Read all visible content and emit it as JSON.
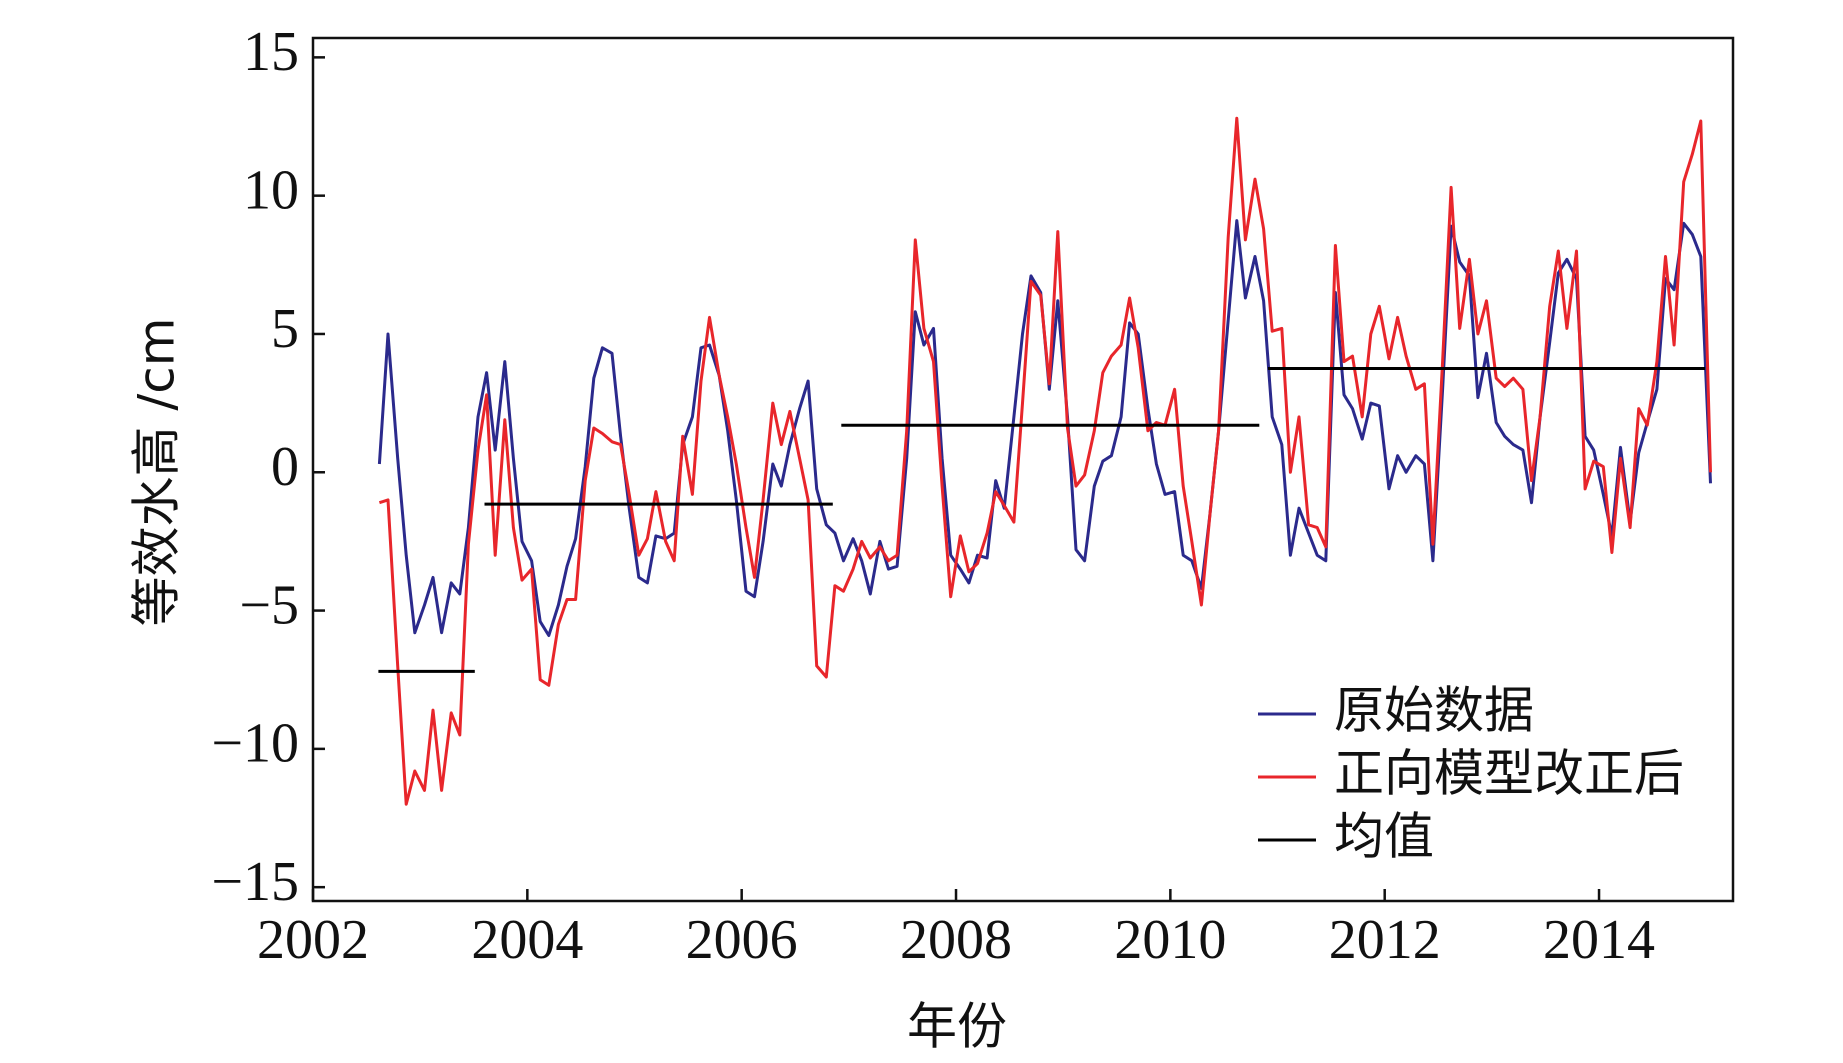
{
  "chart_data": {
    "type": "line",
    "x_label": "年份",
    "y_label": "等效水高 /cm",
    "x": [
      2002.62,
      2002.7,
      2002.79,
      2002.87,
      2002.95,
      2003.04,
      2003.12,
      2003.2,
      2003.29,
      2003.37,
      2003.45,
      2003.54,
      2003.62,
      2003.7,
      2003.79,
      2003.87,
      2003.95,
      2004.04,
      2004.12,
      2004.2,
      2004.29,
      2004.37,
      2004.45,
      2004.54,
      2004.62,
      2004.7,
      2004.79,
      2004.87,
      2004.95,
      2005.04,
      2005.12,
      2005.2,
      2005.29,
      2005.37,
      2005.45,
      2005.54,
      2005.62,
      2005.7,
      2005.79,
      2005.87,
      2005.95,
      2006.04,
      2006.12,
      2006.2,
      2006.29,
      2006.37,
      2006.45,
      2006.54,
      2006.62,
      2006.7,
      2006.79,
      2006.87,
      2006.95,
      2007.04,
      2007.12,
      2007.2,
      2007.29,
      2007.37,
      2007.45,
      2007.54,
      2007.62,
      2007.7,
      2007.79,
      2007.87,
      2007.95,
      2008.04,
      2008.12,
      2008.2,
      2008.29,
      2008.37,
      2008.45,
      2008.54,
      2008.62,
      2008.7,
      2008.79,
      2008.87,
      2008.95,
      2009.04,
      2009.12,
      2009.2,
      2009.29,
      2009.37,
      2009.45,
      2009.54,
      2009.62,
      2009.7,
      2009.79,
      2009.87,
      2009.95,
      2010.04,
      2010.12,
      2010.2,
      2010.29,
      2010.37,
      2010.45,
      2010.54,
      2010.62,
      2010.7,
      2010.79,
      2010.87,
      2010.95,
      2011.04,
      2011.12,
      2011.2,
      2011.29,
      2011.37,
      2011.45,
      2011.54,
      2011.62,
      2011.7,
      2011.79,
      2011.87,
      2011.95,
      2012.04,
      2012.12,
      2012.2,
      2012.29,
      2012.37,
      2012.45,
      2012.54,
      2012.62,
      2012.7,
      2012.79,
      2012.87,
      2012.95,
      2013.04,
      2013.12,
      2013.2,
      2013.29,
      2013.37,
      2013.45,
      2013.54,
      2013.62,
      2013.7,
      2013.79,
      2013.87,
      2013.95,
      2014.04,
      2014.12,
      2014.2,
      2014.29,
      2014.37,
      2014.45,
      2014.54,
      2014.62,
      2014.7,
      2014.79,
      2014.87,
      2014.95,
      2015.04
    ],
    "series": [
      {
        "name": "原始数据",
        "color": "#2b2a8c",
        "values": [
          0.3,
          5,
          0.5,
          -3,
          -5.8,
          -4.8,
          -3.8,
          -5.8,
          -4,
          -4.4,
          -2,
          2,
          3.6,
          0.8,
          4,
          0.5,
          -2.5,
          -3.2,
          -5.4,
          -5.9,
          -4.8,
          -3.4,
          -2.4,
          0.2,
          3.4,
          4.5,
          4.3,
          1.3,
          -1.3,
          -3.8,
          -4,
          -2.3,
          -2.4,
          -2.2,
          1,
          2,
          4.5,
          4.6,
          3.5,
          1.5,
          -1,
          -4.3,
          -4.5,
          -2.5,
          0.3,
          -0.5,
          1,
          2.3,
          3.3,
          -0.6,
          -1.9,
          -2.2,
          -3.2,
          -2.4,
          -3.2,
          -4.4,
          -2.5,
          -3.5,
          -3.4,
          0.5,
          5.8,
          4.6,
          5.2,
          0.5,
          -3,
          -3.5,
          -4,
          -3,
          -3.1,
          -0.3,
          -1.3,
          2,
          5,
          7.1,
          6.5,
          3,
          6.2,
          2,
          -2.8,
          -3.2,
          -0.5,
          0.4,
          0.6,
          2,
          5.4,
          5,
          2.3,
          0.3,
          -0.8,
          -0.7,
          -3,
          -3.2,
          -4.2,
          -1.5,
          1.5,
          5.5,
          9.1,
          6.3,
          7.8,
          6.2,
          2,
          1,
          -3,
          -1.3,
          -2.2,
          -3,
          -3.2,
          6.5,
          2.8,
          2.3,
          1.2,
          2.5,
          2.4,
          -0.6,
          0.6,
          0,
          0.6,
          0.3,
          -3.2,
          3,
          8.9,
          7.6,
          7.1,
          2.7,
          4.3,
          1.8,
          1.3,
          1,
          0.8,
          -1.1,
          2,
          4.7,
          7.2,
          7.7,
          7,
          1.3,
          0.8,
          -0.8,
          -2.3,
          0.9,
          -1.8,
          0.7,
          1.8,
          3,
          7,
          6.6,
          9,
          8.6,
          7.8,
          -0.4
        ]
      },
      {
        "name": "正向模型改正后",
        "color": "#e8262b",
        "values": [
          -1.1,
          -1,
          -7,
          -12,
          -10.8,
          -11.5,
          -8.6,
          -11.5,
          -8.7,
          -9.5,
          -2.6,
          0.8,
          2.8,
          -3,
          1.9,
          -2,
          -3.9,
          -3.5,
          -7.5,
          -7.7,
          -5.5,
          -4.6,
          -4.6,
          -0.3,
          1.6,
          1.4,
          1.1,
          1,
          -0.8,
          -3,
          -2.4,
          -0.7,
          -2.5,
          -3.2,
          1.3,
          -0.8,
          3.3,
          5.6,
          3.5,
          2,
          0.3,
          -2,
          -3.8,
          -1,
          2.5,
          1,
          2.2,
          0.5,
          -1,
          -7,
          -7.4,
          -4.1,
          -4.3,
          -3.5,
          -2.5,
          -3.1,
          -2.7,
          -3.2,
          -3,
          1.5,
          8.4,
          5.2,
          4,
          -0.5,
          -4.5,
          -2.3,
          -3.6,
          -3.3,
          -2.2,
          -0.7,
          -1.2,
          -1.8,
          2.5,
          6.9,
          6.4,
          3.2,
          8.7,
          1.6,
          -0.5,
          -0.1,
          1.5,
          3.6,
          4.2,
          4.6,
          6.3,
          4.5,
          1.5,
          1.8,
          1.7,
          3,
          -0.5,
          -2.5,
          -4.8,
          -1.5,
          1.5,
          8.5,
          12.8,
          8.4,
          10.6,
          8.8,
          5.1,
          5.2,
          0,
          2,
          -1.9,
          -2,
          -2.7,
          8.2,
          4,
          4.2,
          2,
          5,
          6,
          4.1,
          5.6,
          4.2,
          3,
          3.2,
          -2.6,
          4,
          10.3,
          5.2,
          7.7,
          5,
          6.2,
          3.4,
          3.1,
          3.4,
          3,
          -0.3,
          2,
          6,
          8,
          5.2,
          8,
          -0.6,
          0.4,
          0.2,
          -2.9,
          0.5,
          -2,
          2.3,
          1.7,
          4,
          7.8,
          4.6,
          10.5,
          11.5,
          12.7,
          0
        ]
      },
      {
        "name": "均值",
        "color": "#000000",
        "x": [
          2002.61,
          2003.51,
          2003.55,
          2003.6,
          2006.85,
          2006.89,
          2006.93,
          2010.83,
          2010.87,
          2010.91,
          2014.99
        ],
        "values": [
          -7.2,
          -7.2,
          null,
          -1.15,
          -1.15,
          null,
          1.7,
          1.7,
          null,
          3.75,
          3.75
        ]
      }
    ],
    "xlim": [
      2002,
      2015.25
    ],
    "ylim": [
      -15.5,
      15.7
    ],
    "xticks": [
      2002,
      2004,
      2006,
      2008,
      2010,
      2012,
      2014
    ],
    "yticks": [
      {
        "value": -15,
        "label": "−15"
      },
      {
        "value": -10,
        "label": "−10"
      },
      {
        "value": -5,
        "label": "−5"
      },
      0,
      5,
      10,
      15
    ],
    "grid": false,
    "legend": "lower right"
  }
}
